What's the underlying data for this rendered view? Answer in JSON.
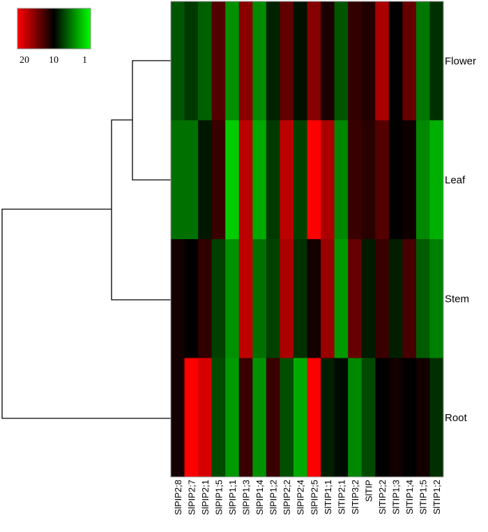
{
  "chart_data": {
    "type": "heatmap",
    "title": "",
    "rows": [
      "Flower",
      "Leaf",
      "Stem",
      "Root"
    ],
    "columns": [
      "SlPIP2;8",
      "SlPIP2;7",
      "SlPIP2;1",
      "SlPIP1;5",
      "SlPIP1;1",
      "SlPIP1;3",
      "SlPIP1;4",
      "SlPIP1;2",
      "SlPIP2;2",
      "SlPIP2;4",
      "SlPIP2;5",
      "SlTIP1;1",
      "SlTIP2;1",
      "SlTIP3;2",
      "SlTIP",
      "SlTIP2;2",
      "SlTIP1;3",
      "SlTIP1;4",
      "SlTIP1;5",
      "SlTIP1;2"
    ],
    "values": [
      [
        7.0,
        8.0,
        6.6,
        13.3,
        4.9,
        15.4,
        5.1,
        8.8,
        13.8,
        9.4,
        15.2,
        11.0,
        7.0,
        12.0,
        11.3,
        16.7,
        10.0,
        14.0,
        5.8,
        8.3
      ],
      [
        6.0,
        6.0,
        9.2,
        12.2,
        2.8,
        17.3,
        4.0,
        8.0,
        17.3,
        7.7,
        20.0,
        16.7,
        5.2,
        12.2,
        11.6,
        13.3,
        10.0,
        10.6,
        5.2,
        3.8
      ],
      [
        10.8,
        10.0,
        11.9,
        7.7,
        4.9,
        17.5,
        6.0,
        7.7,
        16.7,
        8.3,
        10.8,
        16.0,
        4.6,
        14.0,
        9.1,
        12.2,
        8.9,
        12.8,
        6.8,
        5.5
      ],
      [
        10.8,
        20.0,
        18.4,
        7.4,
        4.6,
        12.2,
        4.9,
        12.2,
        7.2,
        4.0,
        20.0,
        8.9,
        9.6,
        5.2,
        7.4,
        10.0,
        10.7,
        10.0,
        10.7,
        8.3
      ]
    ],
    "color_scale": {
      "min": 1,
      "mid": 10,
      "max": 20,
      "min_color": "#00ff00",
      "mid_color": "#000000",
      "max_color": "#ff0000"
    },
    "legend": {
      "position": "top-left",
      "tick_labels": [
        "20",
        "10",
        "1"
      ]
    },
    "row_dendrogram": {
      "clusters": [
        [
          "Flower",
          "Leaf"
        ],
        [
          [
            "Flower",
            "Leaf"
          ],
          "Stem"
        ],
        [
          [
            [
              "Flower",
              "Leaf"
            ],
            "Stem"
          ],
          "Root"
        ]
      ]
    }
  }
}
